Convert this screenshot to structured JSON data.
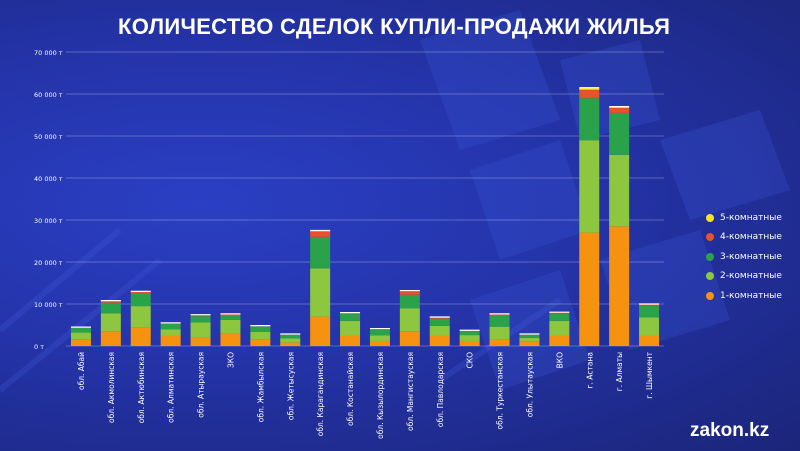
{
  "chart_data": {
    "type": "bar",
    "stacked": true,
    "title": "КОЛИЧЕСТВО СДЕЛОК КУПЛИ-ПРОДАЖИ ЖИЛЬЯ",
    "xlabel": "",
    "ylabel": "",
    "ylim": [
      0,
      70000
    ],
    "grid": true,
    "legend_position": "right",
    "y_ticks": [
      {
        "value": 0,
        "label": "0 т"
      },
      {
        "value": 10000,
        "label": "10 000 т"
      },
      {
        "value": 20000,
        "label": "20 000 т"
      },
      {
        "value": 30000,
        "label": "30 000 т"
      },
      {
        "value": 40000,
        "label": "40 000 т"
      },
      {
        "value": 50000,
        "label": "50 000 т"
      },
      {
        "value": 60000,
        "label": "60 000 т"
      },
      {
        "value": 70000,
        "label": "70 000 т"
      }
    ],
    "categories": [
      "обл. Абай",
      "обл. Акмолинская",
      "обл. Актюбинская",
      "обл. Алматинская",
      "обл. Атырауская",
      "ЗКО",
      "обл. Жамбылская",
      "обл. Жетысуская",
      "обл. Карагандинская",
      "обл. Костанайская",
      "обл. Кызылординская",
      "обл. Мангистауская",
      "обл. Павлодарская",
      "СКО",
      "обл. Туркестанская",
      "обл. Улытауская",
      "ВКО",
      "г. Астана",
      "г. Алматы",
      "г. Шымкент"
    ],
    "series": [
      {
        "name": "1-комнатные",
        "color": "#f5920f",
        "values": [
          1500,
          3500,
          4500,
          2500,
          2000,
          3000,
          1500,
          800,
          7000,
          2500,
          1200,
          3500,
          2500,
          1200,
          1500,
          1000,
          2500,
          27000,
          28500,
          2500
        ]
      },
      {
        "name": "2-комнатные",
        "color": "#8dc63f",
        "values": [
          1700,
          4300,
          5000,
          1500,
          3600,
          3200,
          1900,
          1000,
          11500,
          3500,
          1300,
          5500,
          2300,
          1400,
          3100,
          900,
          3500,
          22000,
          17000,
          4300
        ]
      },
      {
        "name": "3-комнатные",
        "color": "#2aa24a",
        "values": [
          1100,
          2500,
          3000,
          1300,
          1500,
          1200,
          1300,
          900,
          7500,
          1700,
          1500,
          3200,
          1700,
          1000,
          2800,
          800,
          1800,
          10000,
          10000,
          2800
        ]
      },
      {
        "name": "4-комнатные",
        "color": "#e8512a",
        "values": [
          150,
          400,
          400,
          150,
          300,
          200,
          100,
          100,
          1300,
          200,
          100,
          900,
          300,
          100,
          200,
          100,
          200,
          2000,
          1200,
          300
        ]
      },
      {
        "name": "5-комнатные",
        "color": "#f7e320",
        "values": [
          50,
          100,
          100,
          50,
          50,
          50,
          50,
          50,
          200,
          50,
          50,
          100,
          100,
          50,
          50,
          50,
          50,
          500,
          300,
          100
        ]
      }
    ]
  },
  "brand": "zakon.kz"
}
